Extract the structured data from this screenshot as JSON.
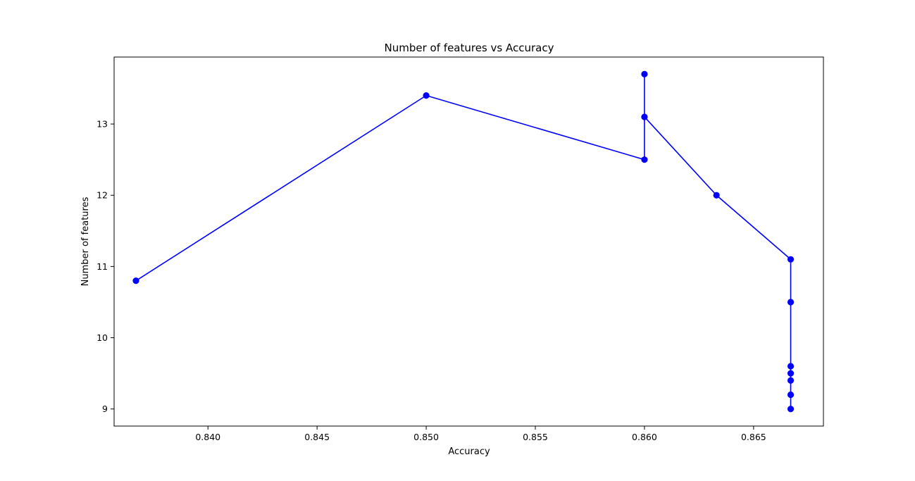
{
  "chart_data": {
    "type": "line",
    "title": "Number of features vs Accuracy",
    "xlabel": "Accuracy",
    "ylabel": "Number of features",
    "xlim": [
      0.8357,
      0.8682
    ],
    "ylim": [
      8.76,
      13.94
    ],
    "xticks": [
      0.84,
      0.845,
      0.85,
      0.855,
      0.86,
      0.865
    ],
    "xtick_labels": [
      "0.840",
      "0.845",
      "0.850",
      "0.855",
      "0.860",
      "0.865"
    ],
    "yticks": [
      9,
      10,
      11,
      12,
      13
    ],
    "ytick_labels": [
      "9",
      "10",
      "11",
      "12",
      "13"
    ],
    "grid": false,
    "marker": "circle",
    "color": "#0000ff",
    "series": [
      {
        "points": [
          {
            "x": 0.8367,
            "y": 10.8
          },
          {
            "x": 0.85,
            "y": 13.4
          },
          {
            "x": 0.86,
            "y": 12.5
          },
          {
            "x": 0.86,
            "y": 13.7
          },
          {
            "x": 0.86,
            "y": 13.1
          },
          {
            "x": 0.8633,
            "y": 12.0
          },
          {
            "x": 0.8667,
            "y": 11.1
          },
          {
            "x": 0.8667,
            "y": 10.5
          },
          {
            "x": 0.8667,
            "y": 9.6
          },
          {
            "x": 0.8667,
            "y": 9.5
          },
          {
            "x": 0.8667,
            "y": 9.4
          },
          {
            "x": 0.8667,
            "y": 9.2
          },
          {
            "x": 0.8667,
            "y": 9.0
          }
        ]
      }
    ]
  }
}
